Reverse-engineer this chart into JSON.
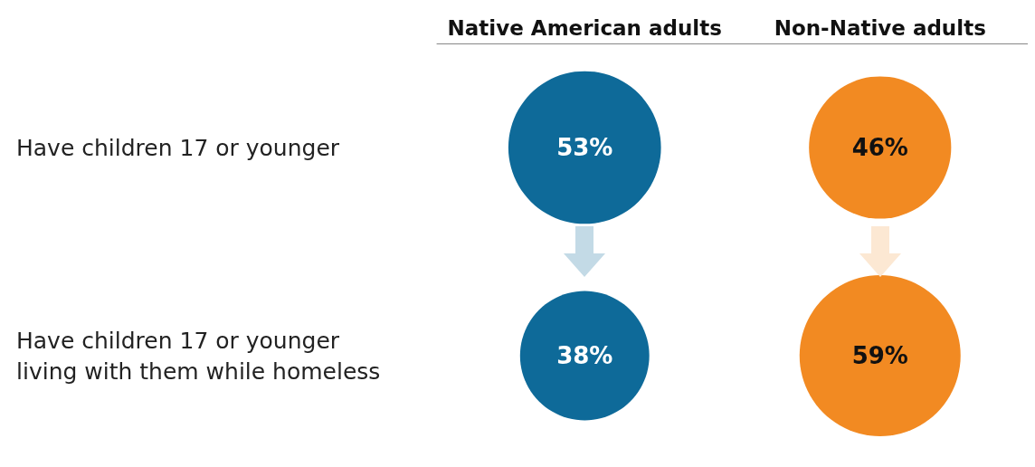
{
  "chart_data": {
    "type": "other",
    "categories": [
      "Native American adults",
      "Non-Native adults"
    ],
    "y_categories": [
      "Have children 17 or younger",
      "Have children 17 or younger\nliving with them while homeless"
    ],
    "series": [
      {
        "values": [
          53,
          46
        ],
        "colors": [
          "#0e6a99",
          "#f28a22"
        ],
        "value_labels": [
          "53%",
          "46%"
        ]
      },
      {
        "values": [
          38,
          59
        ],
        "colors": [
          "#0e6a99",
          "#f28a22"
        ],
        "value_labels": [
          "38%",
          "59%"
        ]
      }
    ]
  }
}
